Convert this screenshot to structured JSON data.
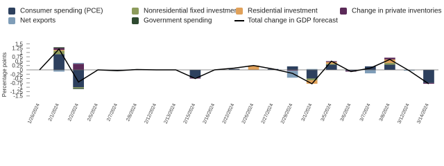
{
  "chart_data": {
    "type": "stacked-bar-line",
    "y_label": "Percentage points",
    "categories": [
      "1/26/2024",
      "2/1/2024",
      "2/2/2024",
      "2/5/2024",
      "2/7/2024",
      "2/8/2024",
      "2/12/2024",
      "2/13/2024",
      "2/15/2024",
      "2/16/2024",
      "2/22/2024",
      "2/26/2024",
      "2/27/2024",
      "2/29/2024",
      "3/1/2024",
      "3/5/2024",
      "3/6/2024",
      "3/7/2024",
      "3/8/2024",
      "3/12/2024",
      "3/14/2024"
    ],
    "series": [
      {
        "name": "Consumer spending (PCE)",
        "color": "#2d405e",
        "values": [
          0,
          0.9,
          -1.0,
          0,
          -0.05,
          0.03,
          0,
          0,
          -0.45,
          0,
          0.05,
          0,
          0.05,
          0.2,
          -0.5,
          0.3,
          -0.05,
          0.2,
          0.3,
          0,
          -0.75
        ]
      },
      {
        "name": "Nonresidential fixed investment",
        "color": "#8d9c5c",
        "values": [
          0,
          0.2,
          -0.05,
          0,
          0,
          0,
          0,
          0,
          0,
          0,
          0,
          0,
          0,
          0,
          -0.1,
          0.05,
          0,
          0,
          0.1,
          0,
          0
        ]
      },
      {
        "name": "Residential investment",
        "color": "#e0a15a",
        "values": [
          0,
          0.05,
          0,
          0,
          0,
          0,
          0,
          0,
          0,
          0,
          0,
          0.25,
          0,
          0,
          -0.2,
          0.1,
          0,
          0,
          0.2,
          0,
          0
        ]
      },
      {
        "name": "Change in private inventories",
        "color": "#5b2a58",
        "values": [
          0,
          0.1,
          0.35,
          0,
          0,
          0,
          0,
          0,
          -0.05,
          0,
          0,
          0,
          0,
          -0.05,
          0,
          0.05,
          -0.05,
          0,
          0.1,
          0,
          -0.05
        ]
      },
      {
        "name": "Net exports",
        "color": "#7f9db8",
        "values": [
          0,
          -0.1,
          0.05,
          0,
          0,
          0,
          0,
          0,
          0,
          0,
          0,
          0,
          0,
          -0.4,
          0.05,
          0,
          0,
          -0.2,
          0,
          -0.05,
          0
        ]
      },
      {
        "name": "Government spending",
        "color": "#2f4a30",
        "values": [
          0,
          0.05,
          -0.05,
          0,
          0,
          0,
          0,
          0,
          0,
          0,
          0,
          0,
          0,
          0,
          0,
          0,
          0,
          0,
          0,
          0,
          0
        ]
      }
    ],
    "line": {
      "name": "Total change in GDP forecast",
      "color": "#000000",
      "values": [
        0,
        1.2,
        -0.7,
        0,
        -0.05,
        0.02,
        0,
        0,
        -0.5,
        0,
        0.1,
        0.25,
        0.05,
        -0.2,
        -0.8,
        0.5,
        -0.1,
        0.1,
        0.6,
        -0.05,
        -0.8
      ]
    },
    "ylim": [
      -1.75,
      1.75
    ],
    "yticks": [
      -1.5,
      -1.25,
      -1,
      -0.75,
      -0.5,
      -0.25,
      0,
      0.25,
      0.5,
      0.75,
      1,
      1.25,
      1.5
    ]
  }
}
